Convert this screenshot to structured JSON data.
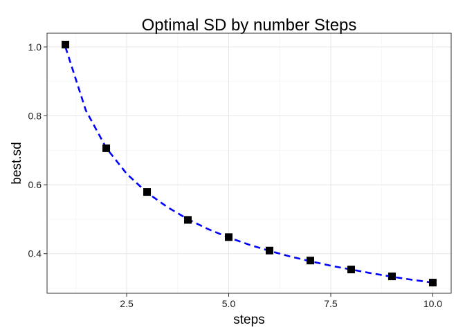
{
  "chart_data": {
    "type": "scatter",
    "title": "Optimal SD by number Steps",
    "xlabel": "steps",
    "ylabel": "best.sd",
    "xlim": [
      0.55,
      10.45
    ],
    "ylim": [
      0.285,
      1.04
    ],
    "x_ticks": [
      2.5,
      5.0,
      7.5,
      10.0
    ],
    "x_tick_labels": [
      "2.5",
      "5.0",
      "7.5",
      "10.0"
    ],
    "y_ticks": [
      0.4,
      0.6,
      0.8,
      1.0
    ],
    "y_tick_labels": [
      "0.4",
      "0.6",
      "0.8",
      "1.0"
    ],
    "grid": true,
    "points": {
      "x": [
        1,
        2,
        3,
        4,
        5,
        6,
        7,
        8,
        9,
        10
      ],
      "y": [
        1.007,
        0.706,
        0.579,
        0.498,
        0.448,
        0.409,
        0.38,
        0.354,
        0.334,
        0.316
      ],
      "marker": "square",
      "color": "#000000"
    },
    "fit_line": {
      "style": "dashed",
      "color": "#0000ff",
      "x": [
        1,
        1.5,
        2,
        2.5,
        3,
        3.5,
        4,
        4.5,
        5,
        5.5,
        6,
        6.5,
        7,
        7.5,
        8,
        8.5,
        9,
        9.5,
        10
      ],
      "y": [
        1.0,
        0.816,
        0.707,
        0.632,
        0.577,
        0.535,
        0.5,
        0.471,
        0.447,
        0.426,
        0.408,
        0.392,
        0.378,
        0.365,
        0.354,
        0.343,
        0.333,
        0.324,
        0.316
      ]
    }
  }
}
